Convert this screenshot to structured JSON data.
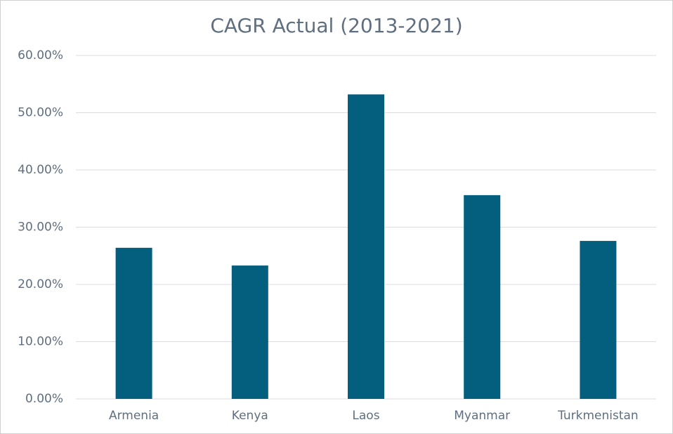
{
  "chart_data": {
    "type": "bar",
    "title": "CAGR Actual (2013-2021)",
    "categories": [
      "Armenia",
      "Kenya",
      "Laos",
      "Myanmar",
      "Turkmenistan"
    ],
    "values": [
      26.4,
      23.3,
      53.2,
      35.6,
      27.6
    ],
    "color": "#045e7e",
    "ylim": [
      0,
      60
    ],
    "yticks": [
      {
        "value": 0,
        "label": "0.00%"
      },
      {
        "value": 10,
        "label": "10.00%"
      },
      {
        "value": 20,
        "label": "20.00%"
      },
      {
        "value": 30,
        "label": "30.00%"
      },
      {
        "value": 40,
        "label": "40.00%"
      },
      {
        "value": 50,
        "label": "50.00%"
      },
      {
        "value": 60,
        "label": "60.00%"
      }
    ],
    "grid": true
  }
}
